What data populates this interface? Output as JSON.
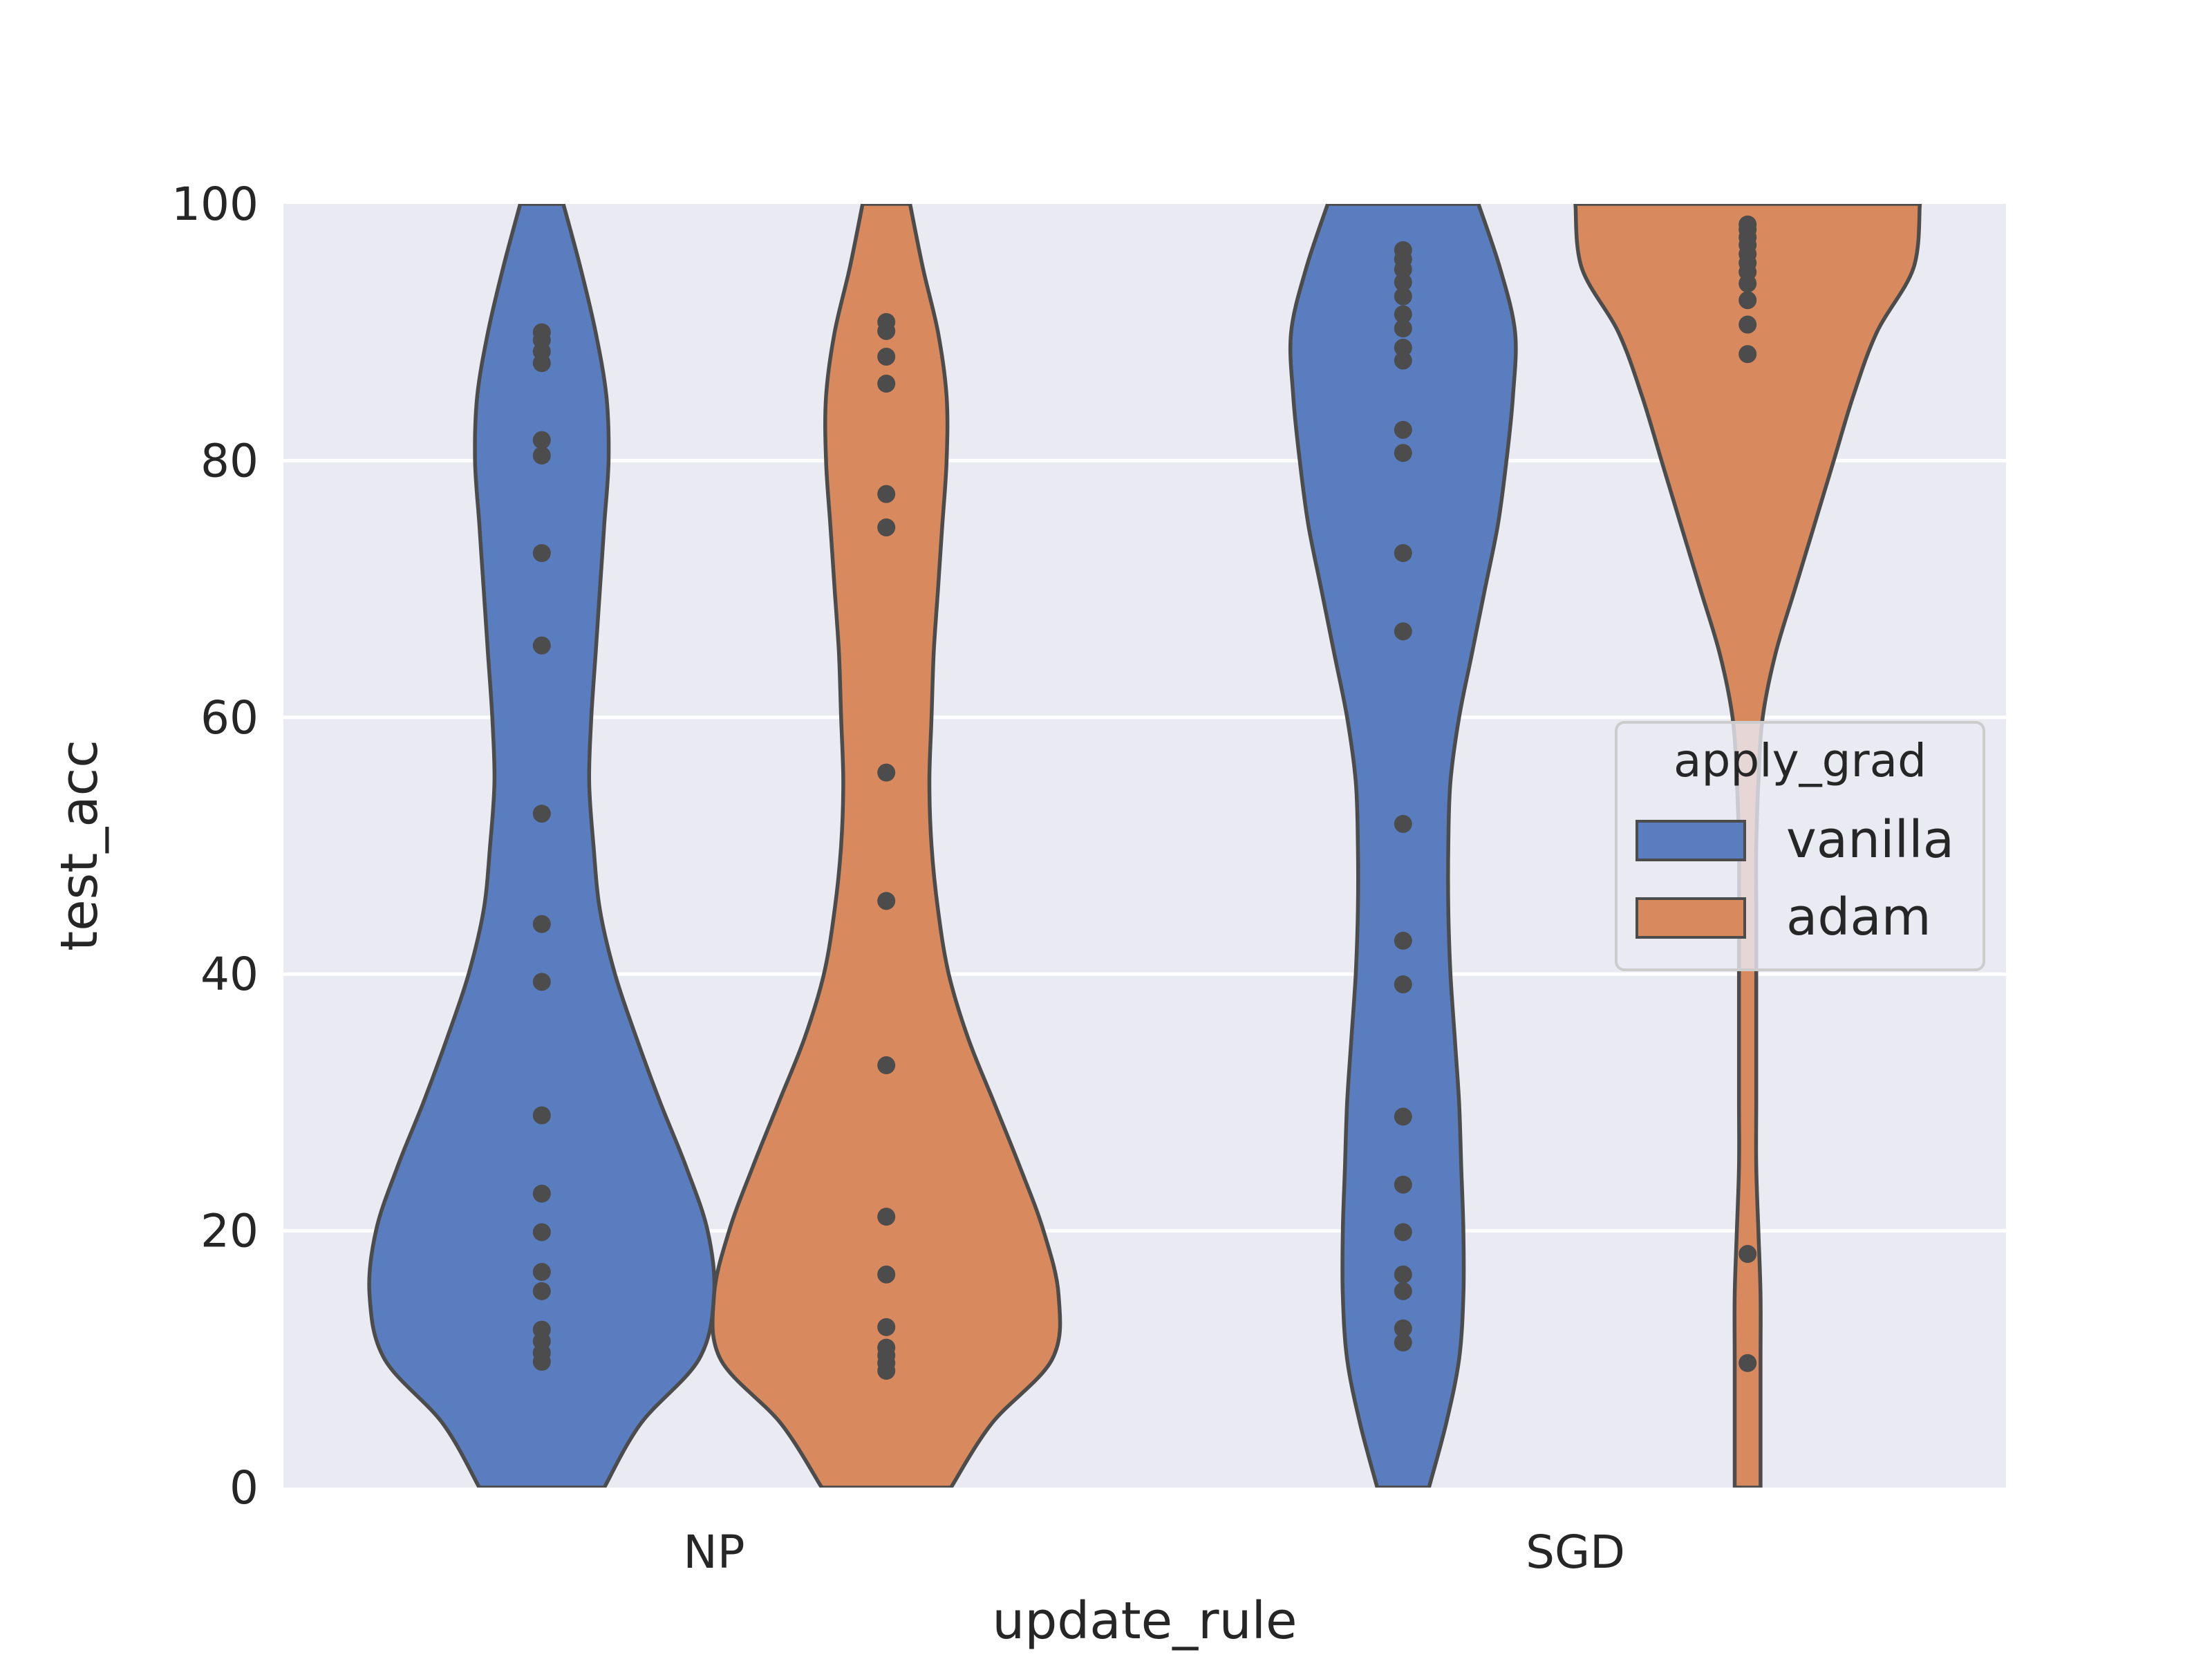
{
  "chart_data": {
    "type": "violin",
    "xlabel": "update_rule",
    "ylabel": "test_acc",
    "categories": [
      "NP",
      "SGD"
    ],
    "ylim": [
      0,
      100
    ],
    "yticks": [
      0,
      20,
      40,
      60,
      80,
      100
    ],
    "grid": true,
    "legend": {
      "title": "apply_grad",
      "placement": "center-right",
      "entries": [
        {
          "label": "vanilla",
          "color": "#5a7dbf"
        },
        {
          "label": "adam",
          "color": "#d8895e"
        }
      ]
    },
    "series": [
      {
        "name": "vanilla",
        "color": "#5a7dbf",
        "groups": [
          {
            "category": "NP",
            "points": [
              9.8,
              10.5,
              11.4,
              12.3,
              15.3,
              16.8,
              19.9,
              22.9,
              29.0,
              39.4,
              43.9,
              52.5,
              65.6,
              72.8,
              80.4,
              81.6,
              87.6,
              88.5,
              89.4,
              90.0
            ],
            "density": [
              [
                0,
                0.29
              ],
              [
                5,
                0.46
              ],
              [
                10,
                0.73
              ],
              [
                15,
                0.8
              ],
              [
                20,
                0.77
              ],
              [
                25,
                0.67
              ],
              [
                30,
                0.55
              ],
              [
                35,
                0.44
              ],
              [
                40,
                0.34
              ],
              [
                45,
                0.27
              ],
              [
                50,
                0.24
              ],
              [
                55,
                0.22
              ],
              [
                60,
                0.23
              ],
              [
                65,
                0.25
              ],
              [
                70,
                0.27
              ],
              [
                75,
                0.29
              ],
              [
                80,
                0.31
              ],
              [
                85,
                0.3
              ],
              [
                90,
                0.25
              ],
              [
                95,
                0.18
              ],
              [
                100,
                0.1
              ]
            ]
          },
          {
            "category": "SGD",
            "points": [
              11.3,
              12.4,
              15.3,
              16.6,
              19.9,
              23.6,
              28.9,
              39.2,
              42.6,
              51.7,
              66.7,
              72.8,
              80.6,
              82.4,
              87.8,
              88.8,
              90.3,
              91.4,
              92.8,
              93.9,
              94.9,
              95.7,
              96.4
            ],
            "density": [
              [
                0,
                0.12
              ],
              [
                5,
                0.2
              ],
              [
                10,
                0.26
              ],
              [
                15,
                0.28
              ],
              [
                20,
                0.28
              ],
              [
                25,
                0.27
              ],
              [
                30,
                0.26
              ],
              [
                35,
                0.24
              ],
              [
                40,
                0.22
              ],
              [
                45,
                0.21
              ],
              [
                50,
                0.21
              ],
              [
                55,
                0.22
              ],
              [
                60,
                0.26
              ],
              [
                65,
                0.32
              ],
              [
                70,
                0.38
              ],
              [
                75,
                0.44
              ],
              [
                80,
                0.48
              ],
              [
                85,
                0.51
              ],
              [
                90,
                0.52
              ],
              [
                95,
                0.45
              ],
              [
                100,
                0.35
              ]
            ]
          }
        ]
      },
      {
        "name": "adam",
        "color": "#d8895e",
        "groups": [
          {
            "category": "NP",
            "points": [
              9.1,
              9.7,
              10.3,
              10.9,
              12.5,
              16.6,
              21.1,
              32.9,
              45.7,
              55.7,
              74.8,
              77.4,
              86.0,
              88.1,
              90.1,
              90.8
            ],
            "density": [
              [
                0,
                0.3
              ],
              [
                5,
                0.49
              ],
              [
                10,
                0.77
              ],
              [
                15,
                0.8
              ],
              [
                20,
                0.73
              ],
              [
                25,
                0.62
              ],
              [
                30,
                0.5
              ],
              [
                35,
                0.38
              ],
              [
                40,
                0.29
              ],
              [
                45,
                0.24
              ],
              [
                50,
                0.21
              ],
              [
                55,
                0.2
              ],
              [
                60,
                0.21
              ],
              [
                65,
                0.22
              ],
              [
                70,
                0.24
              ],
              [
                75,
                0.26
              ],
              [
                80,
                0.28
              ],
              [
                85,
                0.28
              ],
              [
                90,
                0.24
              ],
              [
                95,
                0.17
              ],
              [
                100,
                0.11
              ]
            ]
          },
          {
            "category": "SGD",
            "points": [
              9.7,
              18.2,
              88.3,
              90.6,
              92.5,
              93.8,
              94.7,
              95.4,
              96.1,
              96.8,
              97.4,
              98.0,
              98.4
            ],
            "density": [
              [
                0,
                0.06
              ],
              [
                5,
                0.06
              ],
              [
                10,
                0.06
              ],
              [
                15,
                0.06
              ],
              [
                20,
                0.05
              ],
              [
                25,
                0.04
              ],
              [
                30,
                0.04
              ],
              [
                35,
                0.04
              ],
              [
                40,
                0.04
              ],
              [
                45,
                0.04
              ],
              [
                50,
                0.04
              ],
              [
                55,
                0.05
              ],
              [
                60,
                0.07
              ],
              [
                65,
                0.13
              ],
              [
                70,
                0.22
              ],
              [
                75,
                0.31
              ],
              [
                80,
                0.4
              ],
              [
                85,
                0.49
              ],
              [
                90,
                0.6
              ],
              [
                95,
                0.77
              ],
              [
                100,
                0.8
              ]
            ]
          }
        ]
      }
    ]
  }
}
